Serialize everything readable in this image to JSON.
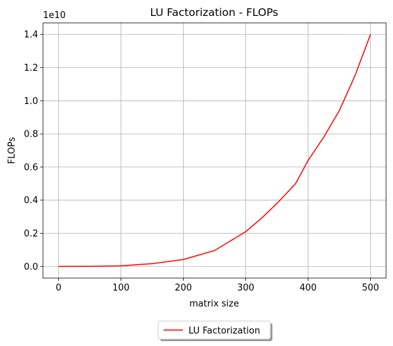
{
  "chart_data": {
    "type": "line",
    "title": "LU Factorization - FLOPs",
    "xlabel": "matrix size",
    "ylabel": "FLOPs",
    "y_offset_text": "1e10",
    "x": [
      0,
      50,
      100,
      150,
      200,
      250,
      300,
      325,
      350,
      380,
      400,
      425,
      450,
      475,
      500
    ],
    "series": [
      {
        "name": "LU Factorization",
        "color": "#ff0000",
        "values": [
          0,
          0.0006,
          0.004,
          0.017,
          0.042,
          0.096,
          0.21,
          0.29,
          0.38,
          0.5,
          0.64,
          0.78,
          0.94,
          1.15,
          1.4
        ]
      }
    ],
    "xlim": [
      -25,
      525
    ],
    "xticks": [
      0,
      100,
      200,
      300,
      400,
      500
    ],
    "ylim": [
      -0.07,
      1.47
    ],
    "yticks": [
      {
        "value": 0,
        "label": "0.0"
      },
      0.2,
      0.4,
      0.6,
      0.8,
      {
        "value": 1,
        "label": "1.0"
      },
      {
        "value": 1.2,
        "label": "1.2"
      },
      {
        "value": 1.4,
        "label": "1.4"
      }
    ],
    "grid": true,
    "legend": "lower center outside"
  }
}
